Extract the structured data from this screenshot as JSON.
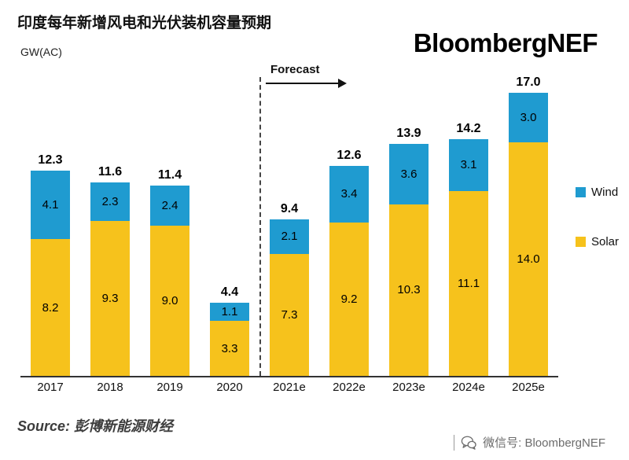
{
  "header": {
    "title": "印度每年新增风电和光伏装机容量预期",
    "unit_label": "GW(AC)",
    "logo": "BloombergNEF"
  },
  "annotations": {
    "forecast_label": "Forecast"
  },
  "legend": [
    {
      "label": "Wind",
      "color": "#1f9bd0"
    },
    {
      "label": "Solar",
      "color": "#f6c21c"
    }
  ],
  "chart_data": {
    "type": "bar",
    "stacked": true,
    "title": "印度每年新增风电和光伏装机容量预期",
    "ylabel": "GW(AC)",
    "ylim": [
      0,
      18
    ],
    "grid": false,
    "legend_position": "right",
    "categories": [
      "2017",
      "2018",
      "2019",
      "2020",
      "2021e",
      "2022e",
      "2023e",
      "2024e",
      "2025e"
    ],
    "series": [
      {
        "name": "Solar",
        "color": "#f6c21c",
        "values": [
          8.2,
          9.3,
          9.0,
          3.3,
          7.3,
          9.2,
          10.3,
          11.1,
          14.0
        ]
      },
      {
        "name": "Wind",
        "color": "#1f9bd0",
        "values": [
          4.1,
          2.3,
          2.4,
          1.1,
          2.1,
          3.4,
          3.6,
          3.1,
          3.0
        ]
      }
    ],
    "totals": [
      12.3,
      11.6,
      11.4,
      4.4,
      9.4,
      12.6,
      13.9,
      14.2,
      17.0
    ],
    "forecast_start_category": "2021e"
  },
  "footer": {
    "source": "Source: 彭博新能源财经",
    "wechat": "微信号: BloombergNEF"
  }
}
